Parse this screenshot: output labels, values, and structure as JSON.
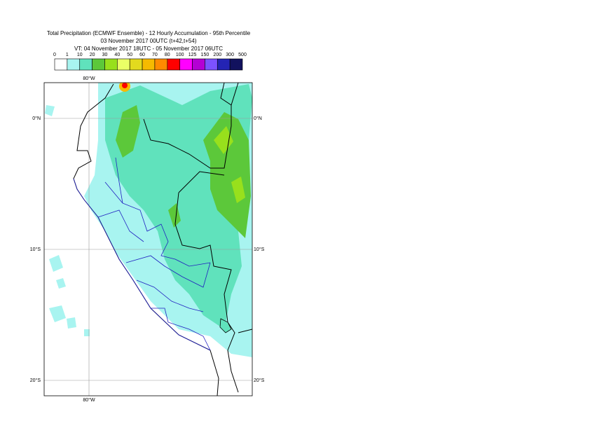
{
  "header": {
    "title": "Total Precipitation (ECMWF Ensemble) - 12 Hourly Accumulation - 95th Percentile",
    "base_time": "03 November 2017 00UTC (t+42,t+54)",
    "valid_time": "VT: 04 November 2017 18UTC - 05 November 2017 06UTC"
  },
  "legend": {
    "labels": [
      "0",
      "1",
      "10",
      "20",
      "30",
      "40",
      "50",
      "60",
      "70",
      "80",
      "100",
      "125",
      "150",
      "200",
      "300",
      "500"
    ],
    "colors": [
      "#ffffff",
      "#a8f4f0",
      "#60e2bc",
      "#5cc83a",
      "#98e01c",
      "#eaff66",
      "#e2da1e",
      "#f6ba00",
      "#ff8a00",
      "#ff0000",
      "#ff00ff",
      "#b400d4",
      "#7c52ff",
      "#2424b4",
      "#12125e"
    ]
  },
  "map": {
    "lon_top": "80°W",
    "lon_bottom": "80°W",
    "lat_left": [
      "0°N",
      "10°S",
      "20°S"
    ],
    "lat_right": [
      "0°N",
      "10°S",
      "20°S"
    ]
  }
}
